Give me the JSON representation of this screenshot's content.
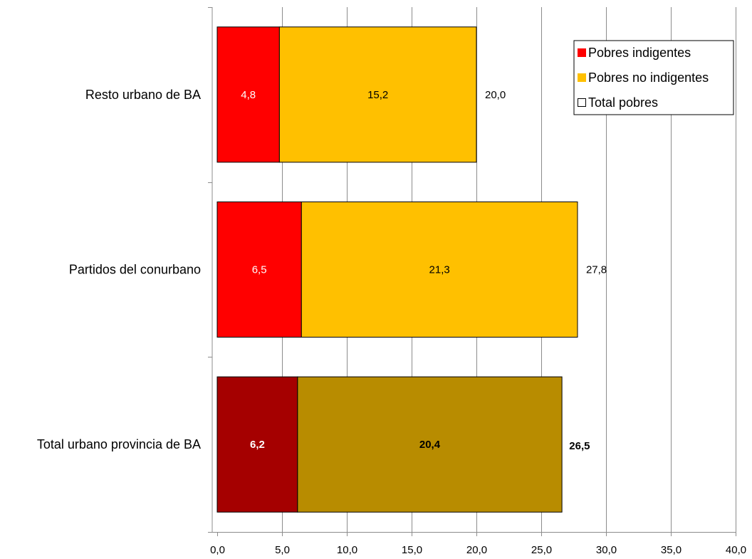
{
  "chart_data": {
    "type": "bar",
    "orientation": "horizontal",
    "stacked": true,
    "categories": [
      "Resto urbano de BA",
      "Partidos del conurbano",
      "Total urbano provincia de BA"
    ],
    "series": [
      {
        "name": "Pobres indigentes",
        "values": [
          4.8,
          6.5,
          6.2
        ],
        "labels": [
          "4,8",
          "6,5",
          "6,2"
        ],
        "color": "#FF0000",
        "highlight_color": "#A50000"
      },
      {
        "name": "Pobres no indigentes",
        "values": [
          15.2,
          21.3,
          20.4
        ],
        "labels": [
          "15,2",
          "21,3",
          "20,4"
        ],
        "color": "#FFC000",
        "highlight_color": "#B88C00"
      }
    ],
    "totals": {
      "name": "Total pobres",
      "values": [
        20.0,
        27.8,
        26.5
      ],
      "labels": [
        "20,0",
        "27,8",
        "26,5"
      ]
    },
    "highlight_category": "Total urbano provincia de BA",
    "xlim": [
      0,
      40
    ],
    "xticks": [
      "0,0",
      "5,0",
      "10,0",
      "15,0",
      "20,0",
      "25,0",
      "30,0",
      "35,0",
      "40,0"
    ],
    "grid": true,
    "legend_position": "top-right"
  }
}
